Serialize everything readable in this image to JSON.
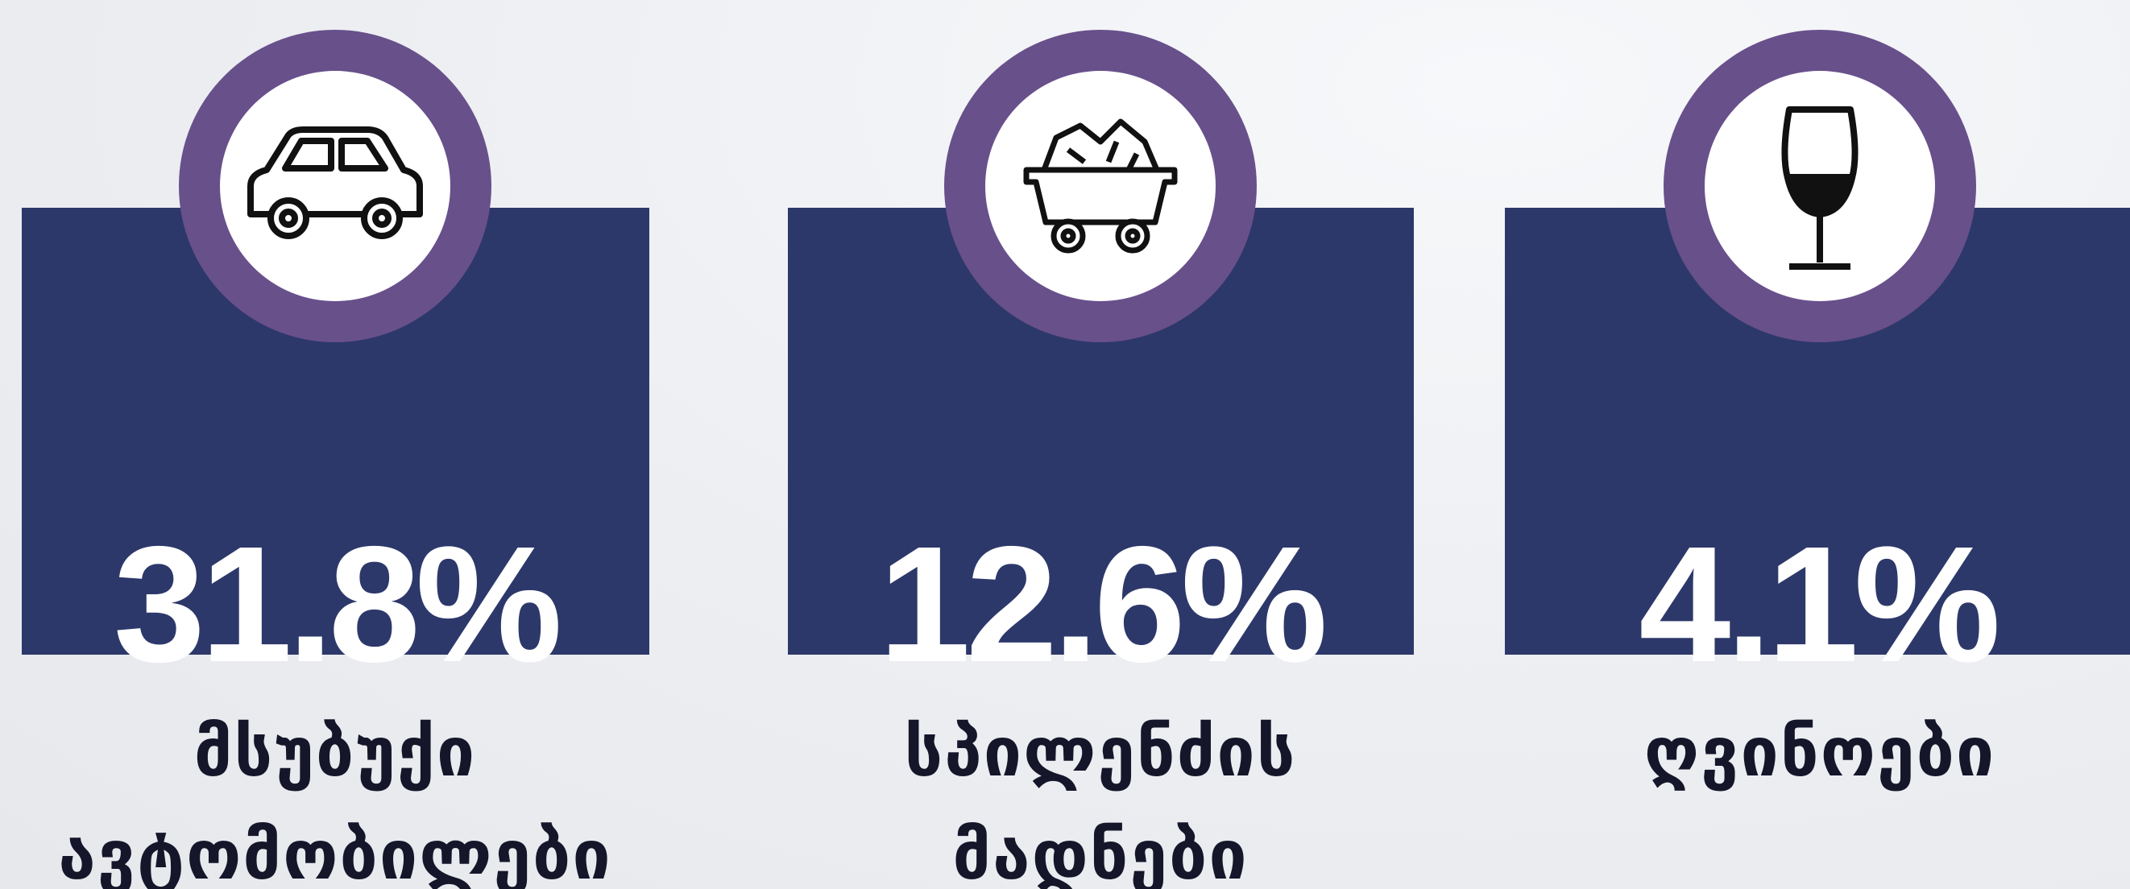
{
  "items": [
    {
      "value": "31.8%",
      "label": [
        "მსუბუქი",
        "ავტომობილები"
      ]
    },
    {
      "value": "12.6%",
      "label": [
        "სპილენძის",
        "მადნები"
      ]
    },
    {
      "value": "4.1%",
      "label": [
        "ღვინოები"
      ]
    }
  ]
}
